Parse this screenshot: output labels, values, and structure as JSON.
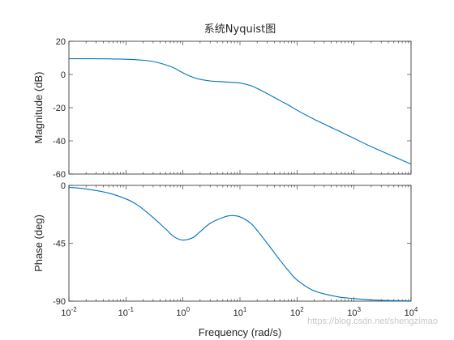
{
  "figure": {
    "title": "系统Nyquist图",
    "xlabel": "Frequency  (rad/s)",
    "watermark": "https://blog.csdn.net/shengzimao"
  },
  "colors": {
    "line": "#0072bd",
    "axis": "#262626",
    "background": "#ffffff"
  },
  "chart_data": [
    {
      "type": "line",
      "title": "系统Nyquist图",
      "ylabel": "Magnitude (dB)",
      "xscale": "log",
      "xlim": [
        0.01,
        10000
      ],
      "ylim": [
        -60,
        20
      ],
      "yticks": [
        20,
        0,
        -20,
        -40,
        -60
      ],
      "grid": false,
      "series": [
        {
          "x": [
            0.01,
            0.02,
            0.05,
            0.1,
            0.2,
            0.3,
            0.5,
            0.7,
            1,
            1.5,
            2,
            3,
            5,
            7,
            10,
            15,
            20,
            30,
            50,
            70,
            100,
            200,
            500,
            1000,
            2000,
            5000,
            10000
          ],
          "values": [
            9.5,
            9.5,
            9.4,
            9.2,
            8.6,
            7.8,
            5.8,
            3.9,
            1.0,
            -1.7,
            -2.9,
            -3.9,
            -4.4,
            -4.7,
            -5.1,
            -6.6,
            -8.4,
            -11.5,
            -15.7,
            -18.3,
            -21.5,
            -27.0,
            -33.5,
            -38.5,
            -43.5,
            -49.5,
            -54.0
          ]
        }
      ]
    },
    {
      "type": "line",
      "ylabel": "Phase (deg)",
      "xlabel": "Frequency  (rad/s)",
      "xscale": "log",
      "xlim": [
        0.01,
        10000
      ],
      "ylim": [
        -90,
        0
      ],
      "yticks": [
        0,
        -45,
        -90
      ],
      "xticks": [
        {
          "value": 0.01,
          "base": "10",
          "exp": "-2"
        },
        {
          "value": 0.1,
          "base": "10",
          "exp": "-1"
        },
        {
          "value": 1,
          "base": "10",
          "exp": "0"
        },
        {
          "value": 10,
          "base": "10",
          "exp": "1"
        },
        {
          "value": 100,
          "base": "10",
          "exp": "2"
        },
        {
          "value": 1000,
          "base": "10",
          "exp": "3"
        },
        {
          "value": 10000,
          "base": "10",
          "exp": "4"
        }
      ],
      "grid": false,
      "series": [
        {
          "x": [
            0.01,
            0.02,
            0.05,
            0.1,
            0.15,
            0.2,
            0.3,
            0.5,
            0.7,
            1,
            1.5,
            2,
            3,
            5,
            7,
            10,
            15,
            20,
            30,
            50,
            70,
            100,
            200,
            500,
            1000,
            2000,
            5000,
            10000
          ],
          "values": [
            -1.5,
            -2.8,
            -6.0,
            -10.5,
            -14.5,
            -18.5,
            -25.0,
            -34.0,
            -40.0,
            -42.5,
            -40.5,
            -36.0,
            -29.5,
            -25.0,
            -23.5,
            -24.5,
            -29.0,
            -35.0,
            -45.0,
            -58.0,
            -66.0,
            -73.5,
            -82.0,
            -86.5,
            -88.0,
            -89.0,
            -89.6,
            -89.8
          ]
        }
      ]
    }
  ]
}
